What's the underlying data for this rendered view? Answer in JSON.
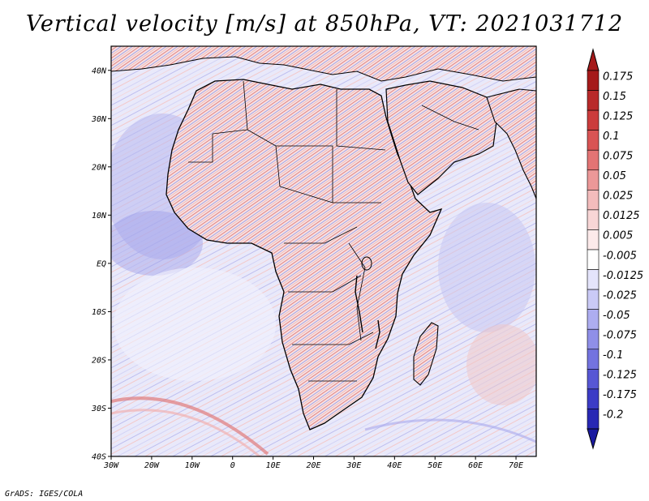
{
  "title": "Vertical velocity [m/s] at 850hPa, VT: 2021031712",
  "credit": "GrADS: IGES/COLA",
  "map": {
    "lon_range": [
      -30,
      75
    ],
    "lat_range": [
      -40,
      45
    ],
    "lat_ticks": [
      {
        "value": 40,
        "label": "40N"
      },
      {
        "value": 30,
        "label": "30N"
      },
      {
        "value": 20,
        "label": "20N"
      },
      {
        "value": 10,
        "label": "10N"
      },
      {
        "value": 0,
        "label": "EQ"
      },
      {
        "value": -10,
        "label": "10S"
      },
      {
        "value": -20,
        "label": "20S"
      },
      {
        "value": -30,
        "label": "30S"
      },
      {
        "value": -40,
        "label": "40S"
      }
    ],
    "lon_ticks": [
      {
        "value": -30,
        "label": "30W"
      },
      {
        "value": -20,
        "label": "20W"
      },
      {
        "value": -10,
        "label": "10W"
      },
      {
        "value": 0,
        "label": "0"
      },
      {
        "value": 10,
        "label": "10E"
      },
      {
        "value": 20,
        "label": "20E"
      },
      {
        "value": 30,
        "label": "30E"
      },
      {
        "value": 40,
        "label": "40E"
      },
      {
        "value": 50,
        "label": "50E"
      },
      {
        "value": 60,
        "label": "60E"
      },
      {
        "value": 70,
        "label": "70E"
      }
    ]
  },
  "colorbar": {
    "levels": [
      {
        "label": "0.175",
        "color": "#a51a1a"
      },
      {
        "label": "0.15",
        "color": "#b82a2a"
      },
      {
        "label": "0.125",
        "color": "#cb3c3c"
      },
      {
        "label": "0.1",
        "color": "#d95454"
      },
      {
        "label": "0.075",
        "color": "#e37474"
      },
      {
        "label": "0.05",
        "color": "#ec9898"
      },
      {
        "label": "0.025",
        "color": "#f3bcbc"
      },
      {
        "label": "0.0125",
        "color": "#f8d6d6"
      },
      {
        "label": "0.005",
        "color": "#fceaea"
      },
      {
        "label": "-0.005",
        "color": "#ffffff"
      },
      {
        "label": "-0.0125",
        "color": "#e4e4fb"
      },
      {
        "label": "-0.025",
        "color": "#cacaf6"
      },
      {
        "label": "-0.05",
        "color": "#adadf0"
      },
      {
        "label": "-0.075",
        "color": "#8f8fe8"
      },
      {
        "label": "-0.1",
        "color": "#7373df"
      },
      {
        "label": "-0.125",
        "color": "#5757d4"
      },
      {
        "label": "-0.175",
        "color": "#3c3cc6"
      },
      {
        "label": "-0.2",
        "color": "#2828b4"
      }
    ],
    "top_arrow_color": "#a51a1a",
    "bottom_arrow_color": "#1a1aa0"
  }
}
